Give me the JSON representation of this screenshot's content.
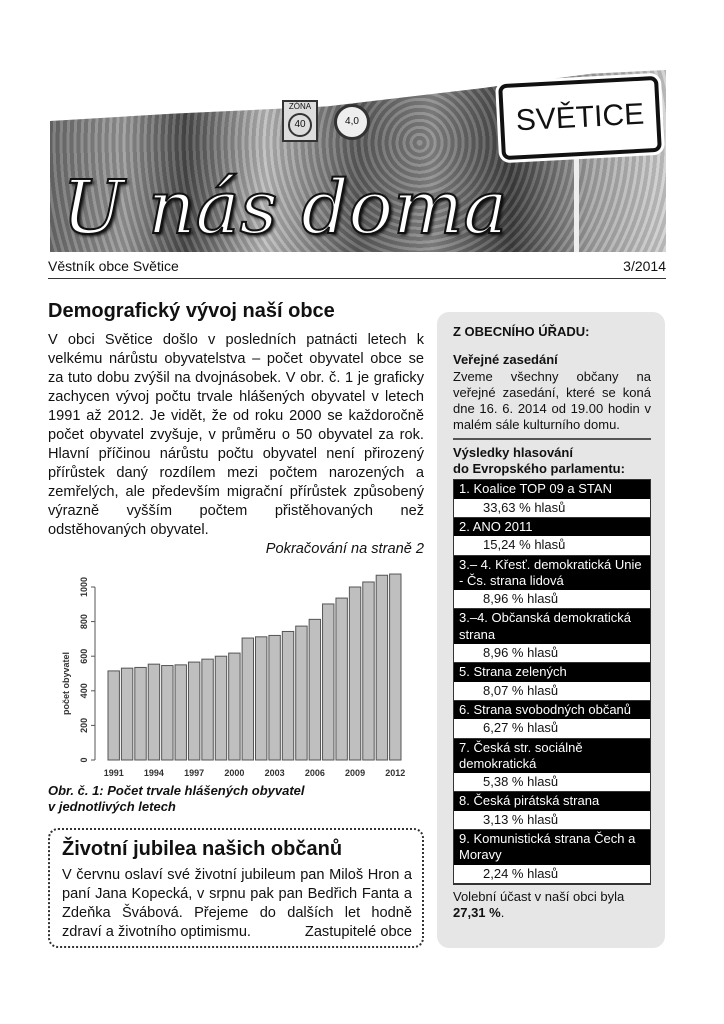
{
  "header": {
    "logo_title": "U nás doma",
    "sign_text": "SVĚTICE",
    "zona_label": "ZÓNA",
    "zona_speed": "40",
    "limit_sign": "4,0",
    "newsletter_name": "Věstník obce Světice",
    "issue": "3/2014"
  },
  "article": {
    "title": "Demografický vývoj naší obce",
    "body": "V obci Světice došlo v posledních patnácti letech k velkému nárůstu obyvatelstva – počet obyvatel obce se za tuto dobu zvýšil na dvojnásobek. V obr. č. 1 je graficky zachycen vývoj počtu trvale hlášených obyvatel v letech 1991 až 2012. Je vidět, že od roku 2000 se každoročně počet obyvatel zvyšuje, v průměru o 50 obyvatel za rok. Hlavní příčinou nárůstu počtu obyvatel není přirozený přírůstek daný rozdílem mezi počtem narozených a zemřelých, ale především migrační přírůstek způsobený výrazně vyšším počtem přistěhovaných než odstěhovaných obyvatel.",
    "continued": "Pokračování na straně 2",
    "caption_line1": "Obr. č. 1: Počet trvale hlášených obyvatel",
    "caption_line2": "v jednotlivých letech"
  },
  "chart_data": {
    "type": "bar",
    "title": "",
    "xlabel": "",
    "ylabel": "počet obyvatel",
    "ylim": [
      0,
      1080
    ],
    "yticks": [
      "0",
      "200",
      "400",
      "600",
      "800",
      "1000"
    ],
    "xtick_labels": [
      "1991",
      "1994",
      "1997",
      "2000",
      "2003",
      "2006",
      "2009",
      "2012"
    ],
    "categories": [
      1991,
      1992,
      1993,
      1994,
      1995,
      1996,
      1997,
      1998,
      1999,
      2000,
      2001,
      2002,
      2003,
      2004,
      2005,
      2006,
      2007,
      2008,
      2009,
      2010,
      2011,
      2012
    ],
    "values": [
      515,
      531,
      535,
      554,
      546,
      550,
      566,
      583,
      600,
      618,
      705,
      712,
      720,
      743,
      774,
      813,
      902,
      936,
      1000,
      1029,
      1068,
      1075
    ],
    "bar_color": "#bfbfbf",
    "grid": false
  },
  "jubilee": {
    "title": "Životní jubilea našich občanů",
    "body": "V červnu oslaví své životní jubileum pan Miloš Hron a paní Jana Kopecká, v srpnu pak pan Bedřich Fanta a Zdeňka Švábová. Přejeme do dalších let hodně zdraví a životního optimismu.",
    "signature": "Zastupitelé obce"
  },
  "sidebar": {
    "heading": "Z OBECNÍHO ÚŘADU:",
    "meeting_title": "Veřejné zasedání",
    "meeting_text": "Zveme všechny občany na veřejné zasedání, které se koná dne 16. 6. 2014 od 19.00 hodin v malém sále kulturního domu.",
    "results_title_1": "Výsledky hlasování",
    "results_title_2": "do Evropského parlamentu:",
    "results": [
      {
        "party": "1. Koalice TOP 09 a STAN",
        "pct": "33,63 % hlasů"
      },
      {
        "party": "2. ANO 2011",
        "pct": "15,24 % hlasů"
      },
      {
        "party": "3.– 4. Křesť. demokratická Unie - Čs. strana lidová",
        "pct": "8,96 % hlasů"
      },
      {
        "party": "3.–4. Občanská demokratická strana",
        "pct": "8,96 % hlasů"
      },
      {
        "party": "5. Strana zelených",
        "pct": "8,07 % hlasů"
      },
      {
        "party": "6. Strana svobodných občanů",
        "pct": "6,27 % hlasů"
      },
      {
        "party": "7. Česká str. sociálně demokratická",
        "pct": "5,38 % hlasů"
      },
      {
        "party": "8. Česká pirátská strana",
        "pct": "3,13 % hlasů"
      },
      {
        "party": "9. Komunistická strana Čech a Moravy",
        "pct": "2,24 % hlasů"
      }
    ],
    "turnout_text": "Volební účast v naší obci byla ",
    "turnout_value": "27,31 %",
    "turnout_end": "."
  }
}
